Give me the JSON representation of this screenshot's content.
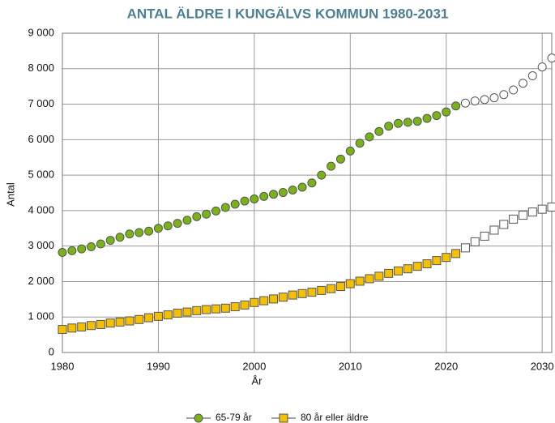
{
  "chart_data": {
    "type": "line",
    "title": "ANTAL ÄLDRE I KUNGÄLVS KOMMUN 1980-2031",
    "x_label": "År",
    "y_label": "Antal",
    "x": [
      1980,
      1981,
      1982,
      1983,
      1984,
      1985,
      1986,
      1987,
      1988,
      1989,
      1990,
      1991,
      1992,
      1993,
      1994,
      1995,
      1996,
      1997,
      1998,
      1999,
      2000,
      2001,
      2002,
      2003,
      2004,
      2005,
      2006,
      2007,
      2008,
      2009,
      2010,
      2011,
      2012,
      2013,
      2014,
      2015,
      2016,
      2017,
      2018,
      2019,
      2020,
      2021,
      2022,
      2023,
      2024,
      2025,
      2026,
      2027,
      2028,
      2029,
      2030,
      2031
    ],
    "hollow_from": 2022,
    "series": [
      {
        "name": "65-79 år",
        "color": "#7ab317",
        "marker": "circle",
        "values": [
          2820,
          2870,
          2920,
          2980,
          3060,
          3160,
          3250,
          3340,
          3380,
          3420,
          3500,
          3570,
          3640,
          3730,
          3830,
          3900,
          3990,
          4090,
          4180,
          4270,
          4330,
          4400,
          4460,
          4510,
          4580,
          4660,
          4780,
          5000,
          5250,
          5450,
          5680,
          5900,
          6080,
          6230,
          6380,
          6460,
          6490,
          6520,
          6600,
          6680,
          6780,
          6950,
          7030,
          7090,
          7130,
          7180,
          7270,
          7400,
          7590,
          7800,
          8050,
          8300
        ]
      },
      {
        "name": "80 år eller äldre",
        "color": "#f5c000",
        "marker": "square",
        "values": [
          650,
          690,
          720,
          760,
          790,
          830,
          860,
          890,
          930,
          980,
          1020,
          1060,
          1110,
          1140,
          1180,
          1210,
          1230,
          1250,
          1290,
          1340,
          1410,
          1460,
          1510,
          1560,
          1620,
          1660,
          1700,
          1750,
          1800,
          1860,
          1940,
          2010,
          2080,
          2150,
          2230,
          2300,
          2360,
          2430,
          2500,
          2590,
          2680,
          2790,
          2950,
          3120,
          3280,
          3450,
          3610,
          3760,
          3870,
          3960,
          4040,
          4100
        ]
      }
    ],
    "xlim": [
      1980,
      2031
    ],
    "xticks": [
      1980,
      1990,
      2000,
      2010,
      2020,
      2030
    ],
    "ylim": [
      0,
      9000
    ],
    "yticks": [
      0,
      {
        "value": 1000,
        "label": "1 000"
      },
      {
        "value": 2000,
        "label": "2 000"
      },
      {
        "value": 3000,
        "label": "3 000"
      },
      {
        "value": 4000,
        "label": "4 000"
      },
      {
        "value": 5000,
        "label": "5 000"
      },
      {
        "value": 6000,
        "label": "6 000"
      },
      {
        "value": 7000,
        "label": "7 000"
      },
      {
        "value": 8000,
        "label": "8 000"
      },
      {
        "value": 9000,
        "label": "9 000"
      }
    ],
    "grid": true,
    "legend": "bottom"
  }
}
